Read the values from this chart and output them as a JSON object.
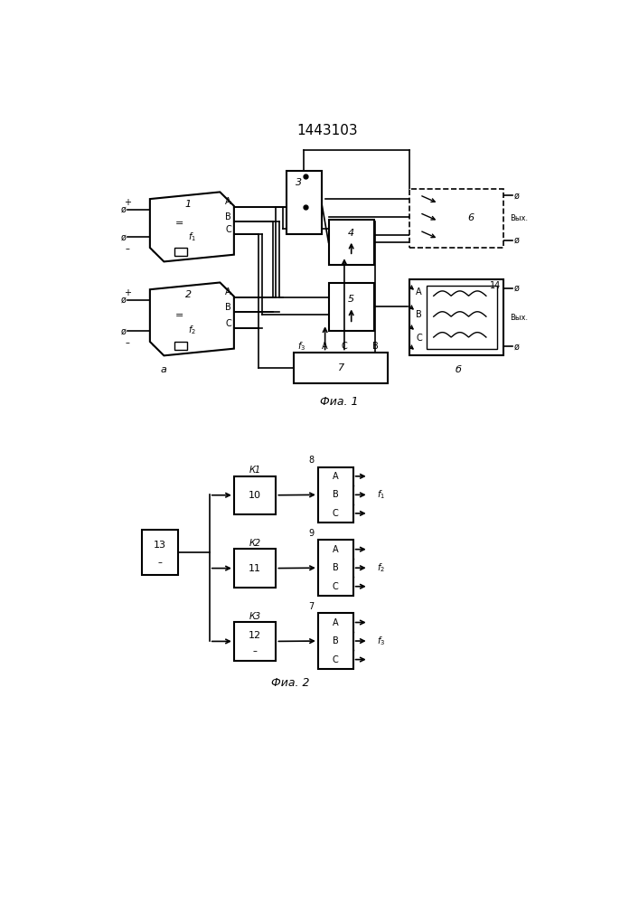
{
  "title": "1443103",
  "title_fontsize": 11,
  "fig1_caption": "Фиа. 1",
  "fig2_caption": "Фиа. 2",
  "bg_color": "#ffffff",
  "line_color": "#000000"
}
